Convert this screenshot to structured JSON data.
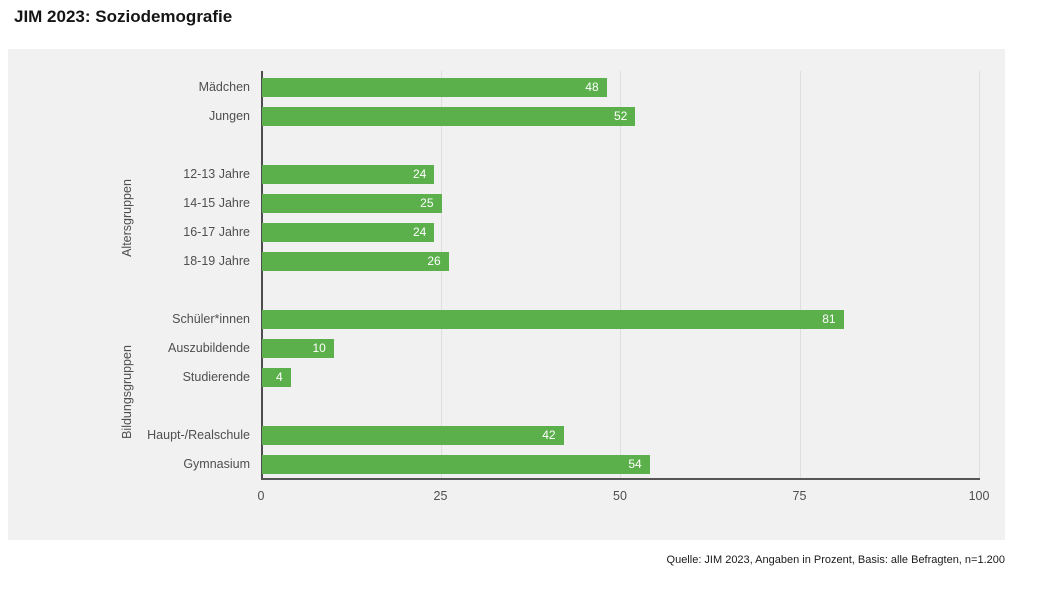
{
  "header": {
    "title": "JIM 2023: Soziodemografie"
  },
  "footer": {
    "source": "Quelle: JIM 2023, Angaben in Prozent, Basis: alle Befragten, n=1.200"
  },
  "colors": {
    "bar_green": "#5bb04c",
    "panel_background": "#f1f1f2",
    "gridline": "#dedede",
    "axis": "#4d4d4d",
    "label_gray": "#4f4f4f",
    "value_text": "#ffffff"
  },
  "chart_data": {
    "type": "bar",
    "orientation": "horizontal",
    "title": "JIM 2023: Soziodemografie",
    "xlabel": "",
    "ylabel": "",
    "unit": "Prozent",
    "xlim": [
      0,
      100
    ],
    "x_ticks": [
      0,
      25,
      50,
      75,
      100
    ],
    "grid": true,
    "groups": [
      {
        "categories": [
          "Mädchen",
          "Jungen"
        ],
        "values": [
          48,
          52
        ]
      },
      {
        "categories": [
          "12-13 Jahre",
          "14-15 Jahre",
          "16-17 Jahre",
          "18-19 Jahre"
        ],
        "values": [
          24,
          25,
          24,
          26
        ]
      },
      {
        "categories": [
          "Schüler*innen",
          "Auszubildende",
          "Studierende"
        ],
        "values": [
          81,
          10,
          4
        ]
      },
      {
        "categories": [
          "Haupt-/Realschule",
          "Gymnasium"
        ],
        "values": [
          42,
          54
        ]
      }
    ],
    "side_labels": [
      {
        "text": "Altersgruppen",
        "group_indexes": [
          1
        ]
      },
      {
        "text": "Bildungsgruppen",
        "group_indexes": [
          2,
          3
        ]
      }
    ]
  }
}
